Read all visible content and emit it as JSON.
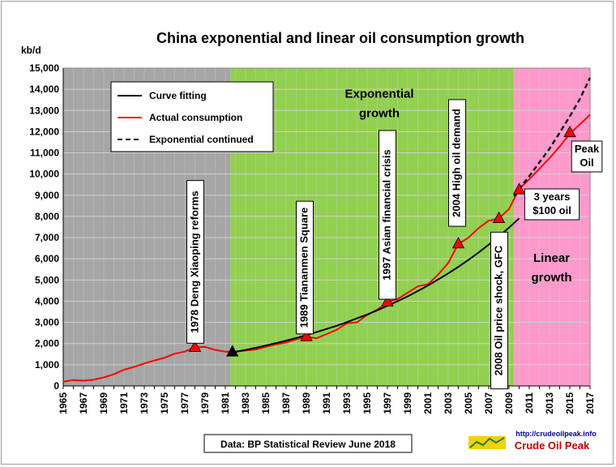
{
  "chart_data": {
    "type": "line",
    "title": "China exponential and linear oil consumption growth",
    "ylabel": "kb/d",
    "xlim": [
      1965,
      2017
    ],
    "ylim": [
      0,
      15000
    ],
    "y_ticks": [
      0,
      1000,
      2000,
      3000,
      4000,
      5000,
      6000,
      7000,
      8000,
      9000,
      10000,
      11000,
      12000,
      13000,
      14000,
      15000
    ],
    "y_tick_labels": [
      "0",
      "1,000",
      "2,000",
      "3,000",
      "4,000",
      "5,000",
      "6,000",
      "7,000",
      "8,000",
      "9,000",
      "10,000",
      "11,000",
      "12,000",
      "13,000",
      "14,000",
      "15,000"
    ],
    "x_tick_labels": [
      "1965",
      "1967",
      "1969",
      "1971",
      "1973",
      "1975",
      "1977",
      "1979",
      "1981",
      "1983",
      "1985",
      "1987",
      "1989",
      "1991",
      "1993",
      "1995",
      "1997",
      "1999",
      "2001",
      "2003",
      "2005",
      "2007",
      "2009",
      "2011",
      "2013",
      "2015",
      "2017"
    ],
    "grid": true,
    "regions": [
      {
        "from": 1965,
        "to": 1981.5,
        "color": "#a6a6a6"
      },
      {
        "from": 1981.5,
        "to": 2009.5,
        "color": "#92d050"
      },
      {
        "from": 2009.5,
        "to": 2017,
        "color": "#ff99cc"
      }
    ],
    "region_labels": [
      {
        "lines": [
          "Exponential",
          "growth"
        ],
        "x": 1996.2,
        "y": 13600
      },
      {
        "lines": [
          "Linear",
          "growth"
        ],
        "x": 2013.2,
        "y": 5850
      }
    ],
    "legend": {
      "position": "top-left",
      "entries": [
        "Curve fitting",
        "Actual consumption",
        "Exponential continued"
      ]
    },
    "series": [
      {
        "name": "Actual consumption",
        "color": "#ff0000",
        "x": [
          1965,
          1966,
          1967,
          1968,
          1969,
          1970,
          1971,
          1972,
          1973,
          1974,
          1975,
          1976,
          1977,
          1978,
          1979,
          1980,
          1981,
          1982,
          1983,
          1984,
          1985,
          1986,
          1987,
          1988,
          1989,
          1990,
          1991,
          1992,
          1993,
          1994,
          1995,
          1996,
          1997,
          1998,
          1999,
          2000,
          2001,
          2002,
          2003,
          2004,
          2005,
          2006,
          2007,
          2008,
          2009,
          2010,
          2011,
          2012,
          2013,
          2014,
          2015,
          2016,
          2017
        ],
        "values": [
          200,
          280,
          250,
          290,
          400,
          550,
          760,
          900,
          1060,
          1200,
          1330,
          1520,
          1620,
          1820,
          1840,
          1700,
          1620,
          1620,
          1670,
          1720,
          1850,
          1960,
          2050,
          2200,
          2320,
          2250,
          2450,
          2650,
          2960,
          3000,
          3350,
          3600,
          3960,
          4100,
          4400,
          4700,
          4800,
          5250,
          5800,
          6700,
          7000,
          7450,
          7800,
          7900,
          8350,
          9300,
          9750,
          10250,
          10750,
          11300,
          11900,
          12350,
          12800
        ]
      },
      {
        "name": "Curve fitting",
        "color": "#000000",
        "x": [
          1982,
          1983,
          1984,
          1985,
          1986,
          1987,
          1988,
          1989,
          1990,
          1991,
          1992,
          1993,
          1994,
          1995,
          1996,
          1997,
          1998,
          1999,
          2000,
          2001,
          2002,
          2003,
          2004,
          2005,
          2006,
          2007,
          2008,
          2009,
          2010
        ],
        "values": [
          1610,
          1700,
          1800,
          1910,
          2020,
          2140,
          2260,
          2400,
          2540,
          2690,
          2840,
          3010,
          3190,
          3370,
          3570,
          3780,
          4000,
          4230,
          4480,
          4740,
          5020,
          5310,
          5620,
          5950,
          6300,
          6670,
          7060,
          7470,
          7910
        ]
      },
      {
        "name": "Exponential continued",
        "color": "#000000",
        "dashed": true,
        "x": [
          2009.5,
          2010,
          2011,
          2012,
          2013,
          2014,
          2015,
          2016,
          2017
        ],
        "values": [
          8950,
          9300,
          9900,
          10550,
          11200,
          11950,
          12720,
          13550,
          14550
        ]
      }
    ],
    "markers": [
      {
        "x": 1978,
        "y": 1820,
        "color": "#ff0000",
        "label": "1978 Deng Xiaoping reforms"
      },
      {
        "x": 1981.7,
        "y": 1600,
        "color": "#000000",
        "label": ""
      },
      {
        "x": 1989,
        "y": 2320,
        "color": "#ff0000",
        "label": "1989 Tiananmen Square"
      },
      {
        "x": 1997,
        "y": 3960,
        "color": "#ff0000",
        "label": "1997 Asian financial crisis"
      },
      {
        "x": 2004,
        "y": 6700,
        "color": "#ff0000",
        "label": "2004 High oil demand"
      },
      {
        "x": 2008,
        "y": 7900,
        "color": "#ff0000",
        "label": "2008 Oil price shock, GFC"
      },
      {
        "x": 2010,
        "y": 9250,
        "color": "#ff0000",
        "label": "3 years $100 oil"
      },
      {
        "x": 2015,
        "y": 11950,
        "color": "#ff0000",
        "label": "Peak Oil"
      }
    ],
    "annotations": {
      "source": "Data: BP Statistical Review June 2018",
      "logo_url": "http://crudeoilpeak.info",
      "logo_name": "Crude Oil Peak"
    }
  }
}
